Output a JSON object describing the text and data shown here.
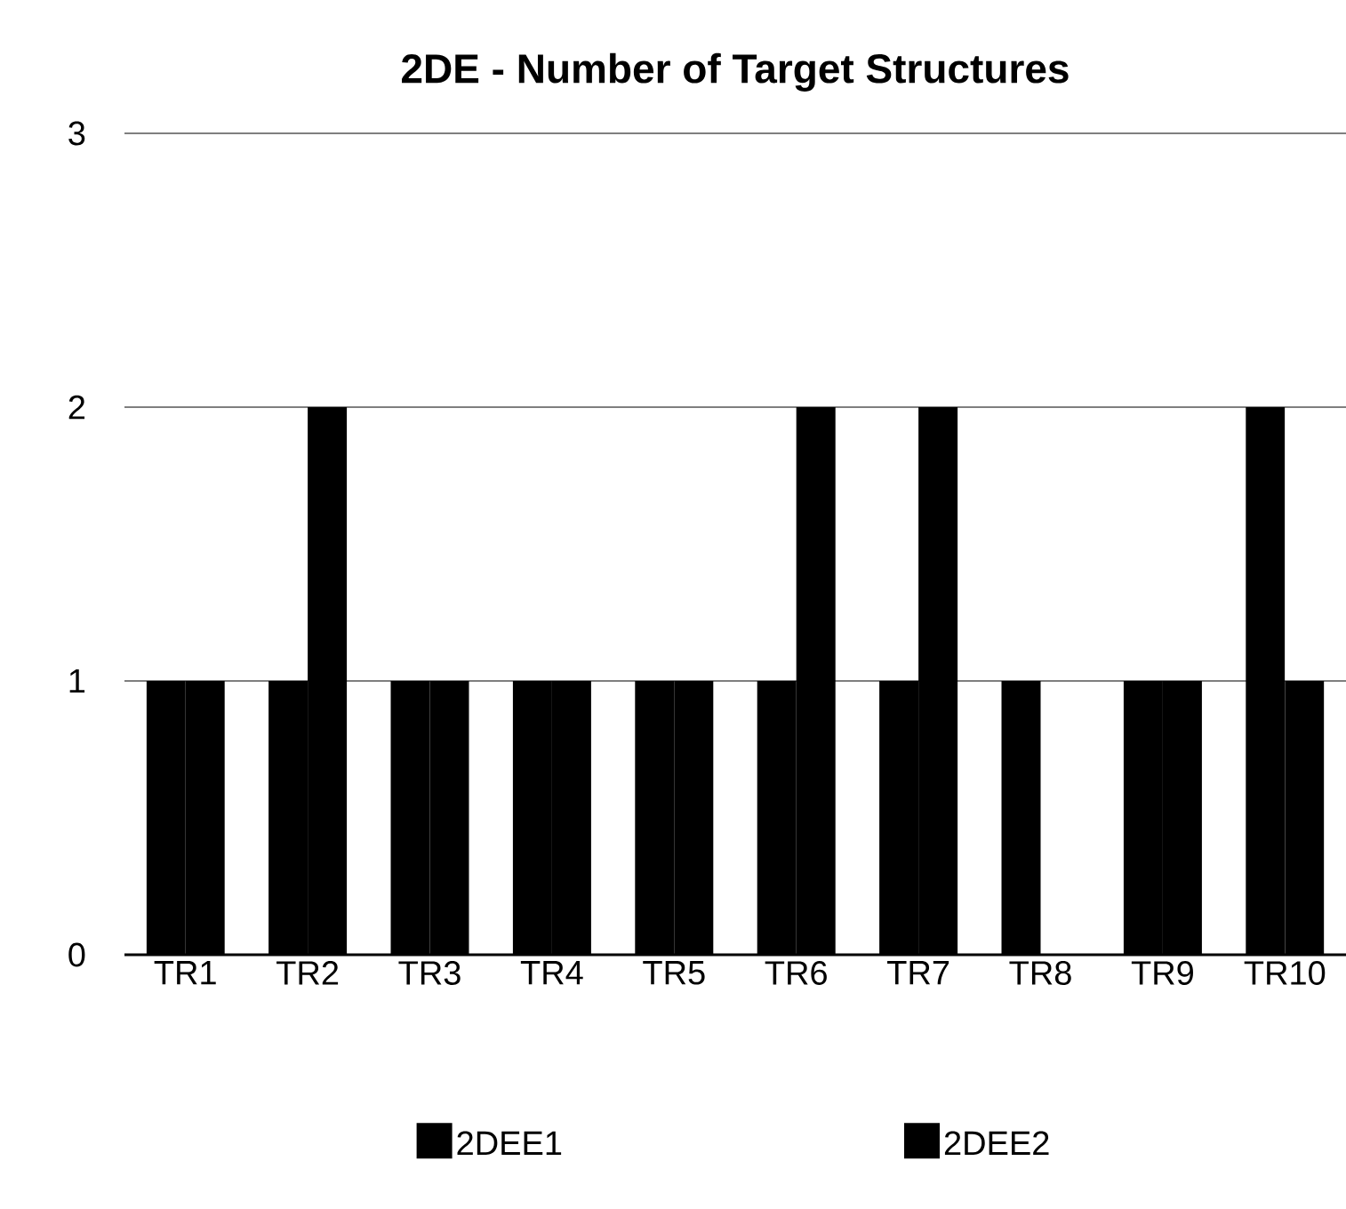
{
  "chart_data": {
    "type": "bar",
    "title": "2DE - Number of Target Structures",
    "categories": [
      "TR1",
      "TR2",
      "TR3",
      "TR4",
      "TR5",
      "TR6",
      "TR7",
      "TR8",
      "TR9",
      "TR10"
    ],
    "series": [
      {
        "name": "2DEE1",
        "color": "#000000",
        "values": [
          1,
          1,
          1,
          1,
          1,
          1,
          1,
          1,
          1,
          2
        ]
      },
      {
        "name": "2DEE2",
        "color": "#000000",
        "values": [
          1,
          2,
          1,
          1,
          1,
          2,
          2,
          0,
          1,
          1
        ]
      }
    ],
    "ylim": [
      0,
      3
    ],
    "yticks": [
      0,
      1,
      2,
      3
    ],
    "grid": "y",
    "legend": "bottom"
  }
}
